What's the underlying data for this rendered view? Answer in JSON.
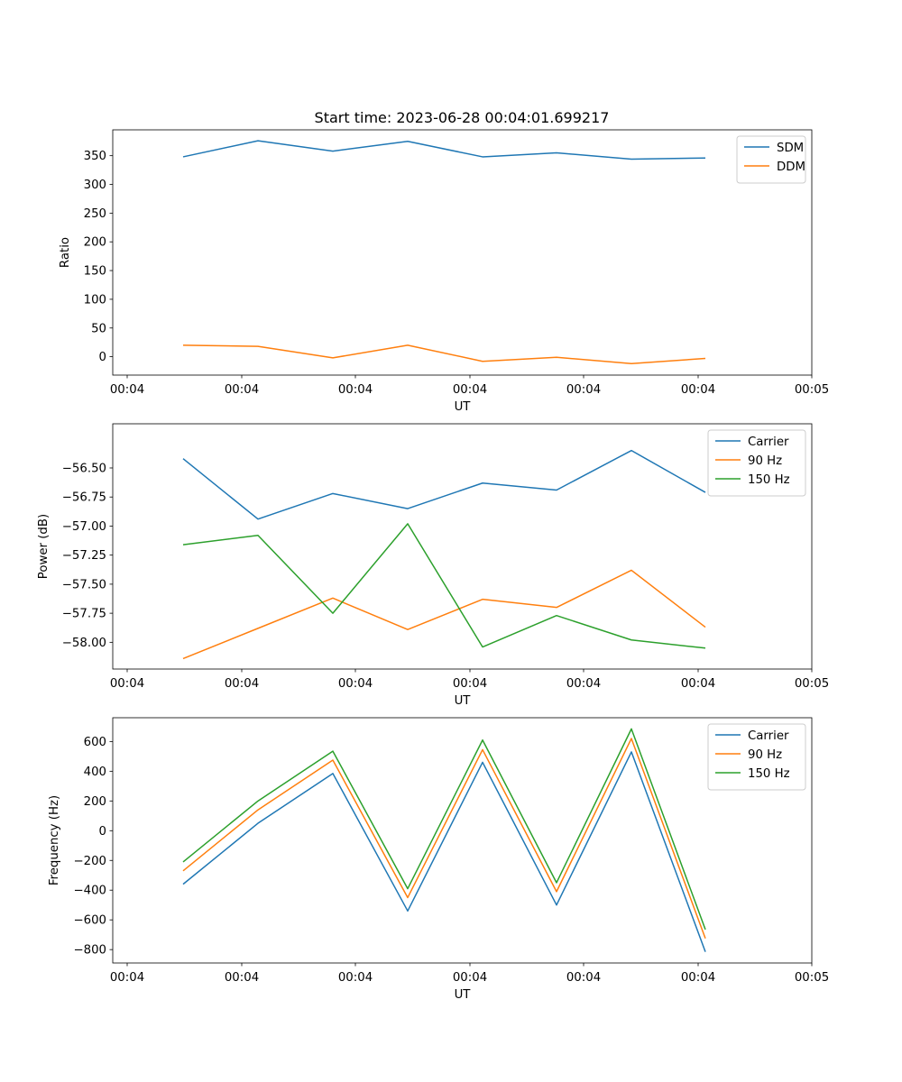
{
  "figure": {
    "title": "Start time: 2023-06-28 00:04:01.699217",
    "colors": {
      "C0": "#1f77b4",
      "C1": "#ff7f0e",
      "C2": "#2ca02c"
    }
  },
  "chart_data": [
    {
      "type": "line",
      "title": "Start time: 2023-06-28 00:04:01.699217",
      "xlabel": "UT",
      "ylabel": "Ratio",
      "x_tick_labels": [
        "00:04",
        "00:04",
        "00:04",
        "00:04",
        "00:04",
        "00:04",
        "00:05"
      ],
      "ylim": [
        -32,
        395
      ],
      "yticks": [
        0,
        50,
        100,
        150,
        200,
        250,
        300,
        350
      ],
      "legend_position": "upper right",
      "series": [
        {
          "name": "SDM",
          "color": "#1f77b4",
          "values": [
            348,
            376,
            358,
            375,
            348,
            355,
            344,
            346
          ]
        },
        {
          "name": "DDM",
          "color": "#ff7f0e",
          "values": [
            20,
            18,
            -2,
            20,
            -8,
            -1,
            -12,
            -3
          ]
        }
      ]
    },
    {
      "type": "line",
      "title": "",
      "xlabel": "UT",
      "ylabel": "Power (dB)",
      "x_tick_labels": [
        "00:04",
        "00:04",
        "00:04",
        "00:04",
        "00:04",
        "00:04",
        "00:05"
      ],
      "ylim": [
        -58.23,
        -56.12
      ],
      "yticks": [
        -58.0,
        -57.75,
        -57.5,
        -57.25,
        -57.0,
        -56.75,
        -56.5
      ],
      "ytick_labels": [
        "−58.00",
        "−57.75",
        "−57.50",
        "−57.25",
        "−57.00",
        "−56.75",
        "−56.50"
      ],
      "legend_position": "upper right",
      "series": [
        {
          "name": "Carrier",
          "color": "#1f77b4",
          "values": [
            -56.42,
            -56.94,
            -56.72,
            -56.85,
            -56.63,
            -56.69,
            -56.35,
            -56.71
          ]
        },
        {
          "name": "90 Hz",
          "color": "#ff7f0e",
          "values": [
            -58.14,
            -57.88,
            -57.62,
            -57.89,
            -57.63,
            -57.7,
            -57.38,
            -57.87
          ]
        },
        {
          "name": "150 Hz",
          "color": "#2ca02c",
          "values": [
            -57.16,
            -57.08,
            -57.75,
            -56.98,
            -58.04,
            -57.77,
            -57.98,
            -58.05
          ]
        }
      ]
    },
    {
      "type": "line",
      "title": "",
      "xlabel": "UT",
      "ylabel": "Frequency (Hz)",
      "x_tick_labels": [
        "00:04",
        "00:04",
        "00:04",
        "00:04",
        "00:04",
        "00:04",
        "00:05"
      ],
      "ylim": [
        -890,
        760
      ],
      "yticks": [
        -800,
        -600,
        -400,
        -200,
        0,
        200,
        400,
        600
      ],
      "ytick_labels": [
        "−800",
        "−600",
        "−400",
        "−200",
        "0",
        "200",
        "400",
        "600"
      ],
      "legend_position": "upper right",
      "series": [
        {
          "name": "Carrier",
          "color": "#1f77b4",
          "values": [
            -360,
            50,
            385,
            -540,
            460,
            -500,
            530,
            -815
          ]
        },
        {
          "name": "90 Hz",
          "color": "#ff7f0e",
          "values": [
            -270,
            140,
            475,
            -450,
            545,
            -410,
            620,
            -725
          ]
        },
        {
          "name": "150 Hz",
          "color": "#2ca02c",
          "values": [
            -210,
            200,
            535,
            -390,
            610,
            -350,
            685,
            -665
          ]
        }
      ]
    }
  ]
}
